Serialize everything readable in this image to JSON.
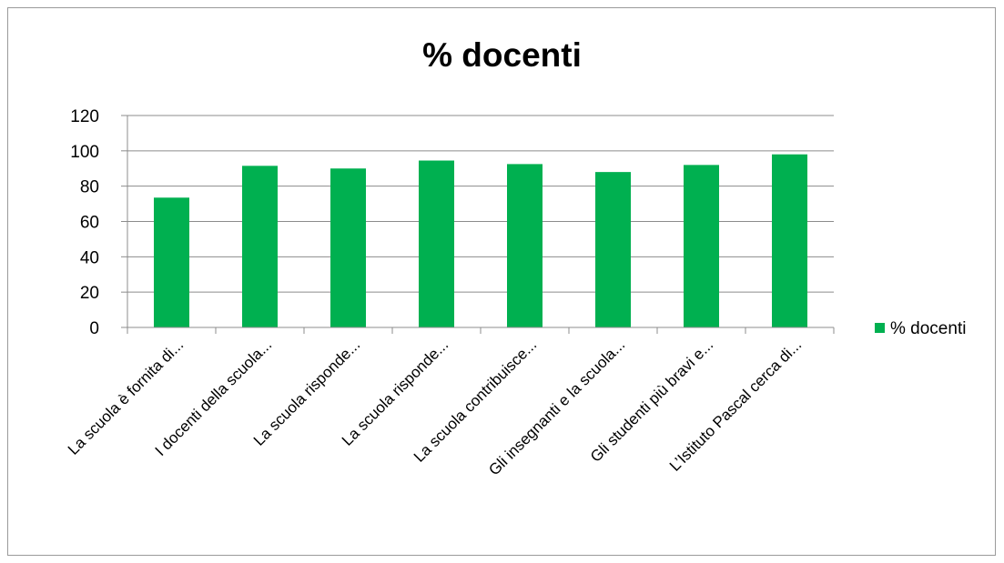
{
  "chart_data": {
    "type": "bar",
    "title": "% docenti",
    "xlabel": "",
    "ylabel": "",
    "ylim": [
      0,
      120
    ],
    "yticks": [
      0,
      20,
      40,
      60,
      80,
      100,
      120
    ],
    "grid": true,
    "legend_position": "right",
    "categories": [
      "La scuola è fornita di...",
      "I docenti della scuola...",
      "La scuola risponde...",
      "La scuola risponde...",
      "La scuola contribuisce...",
      "Gli insegnanti e la scuola...",
      "Gli studenti più bravi e...",
      "L’Istituto Pascal  cerca di..."
    ],
    "series": [
      {
        "name": "% docenti",
        "color": "#00b050",
        "values": [
          73.5,
          91.5,
          90,
          94.5,
          92.5,
          88,
          92,
          98
        ]
      }
    ]
  }
}
